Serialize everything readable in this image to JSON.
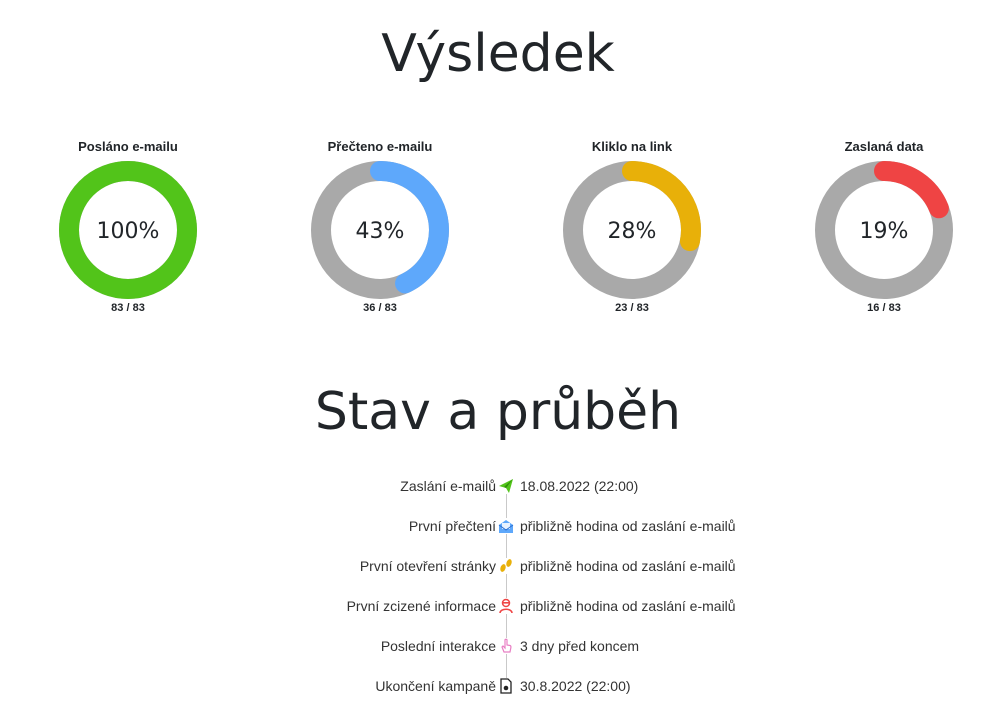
{
  "result": {
    "title": "Výsledek",
    "stats": [
      {
        "label": "Posláno e-mailu",
        "percent": 100,
        "percent_text": "100%",
        "count_text": "83 / 83",
        "color": "#52c41a"
      },
      {
        "label": "Přečteno e-mailu",
        "percent": 43,
        "percent_text": "43%",
        "count_text": "36 / 83",
        "color": "#5ea8fb"
      },
      {
        "label": "Kliklo na link",
        "percent": 28,
        "percent_text": "28%",
        "count_text": "23 / 83",
        "color": "#e8b009"
      },
      {
        "label": "Zaslaná data",
        "percent": 19,
        "percent_text": "19%",
        "count_text": "16 / 83",
        "color": "#ef4444"
      }
    ],
    "track_color": "#a9a9a9"
  },
  "status": {
    "title": "Stav a průběh",
    "events": [
      {
        "label": "Zaslání e-mailů",
        "icon": "paper-plane-icon",
        "value": "18.08.2022 (22:00)"
      },
      {
        "label": "První přečtení",
        "icon": "envelope-open-icon",
        "value": "přibližně hodina od zaslání e-mailů"
      },
      {
        "label": "První otevření stránky",
        "icon": "footprints-icon",
        "value": "přibližně hodina od zaslání e-mailů"
      },
      {
        "label": "První zcizené informace",
        "icon": "user-thief-icon",
        "value": "přibližně hodina od zaslání e-mailů"
      },
      {
        "label": "Poslední interakce",
        "icon": "pointer-hand-icon",
        "value": "3 dny před koncem"
      },
      {
        "label": "Ukončení kampaně",
        "icon": "document-icon",
        "value": "30.8.2022 (22:00)"
      }
    ]
  }
}
